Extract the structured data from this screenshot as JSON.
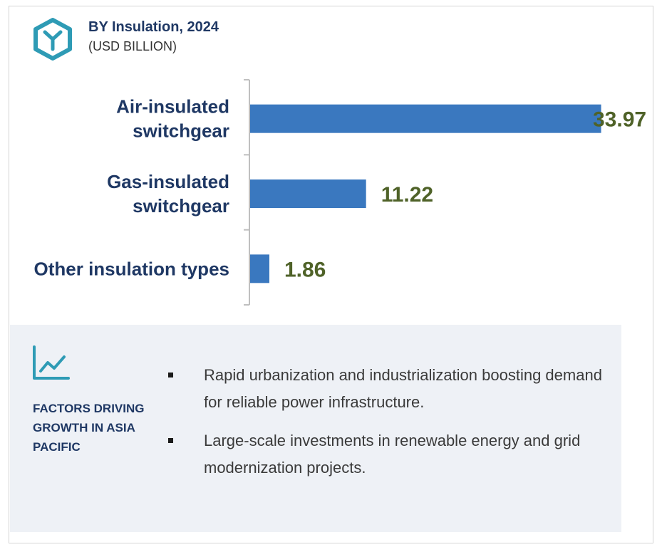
{
  "header": {
    "icon": "hexagon-y-logo-icon",
    "title": "BY Insulation, 2024",
    "subtitle": "(USD BILLION)"
  },
  "colors": {
    "bar": "#3a78bf",
    "title": "#1f3864",
    "value_label": "#4f6228",
    "panel_bg": "#eef1f6",
    "icon": "#2e9bb5"
  },
  "chart_data": {
    "type": "bar",
    "orientation": "horizontal",
    "categories": [
      [
        "Air-insulated",
        "switchgear"
      ],
      [
        "Gas-insulated",
        "switchgear"
      ],
      [
        "Other insulation types"
      ]
    ],
    "values": [
      33.97,
      11.22,
      1.86
    ],
    "value_labels": [
      "33.97",
      "11.22",
      "1.86"
    ],
    "title": "BY Insulation, 2024",
    "subtitle": "(USD BILLION)",
    "xlim": [
      0,
      34
    ],
    "grid": false,
    "legend": "none"
  },
  "factors": {
    "icon": "line-chart-icon",
    "heading": "FACTORS DRIVING GROWTH IN ASIA PACIFIC",
    "items": [
      "Rapid urbanization and industrialization boosting demand for reliable power infrastructure.",
      "Large-scale investments in renewable energy and grid modernization projects."
    ]
  }
}
